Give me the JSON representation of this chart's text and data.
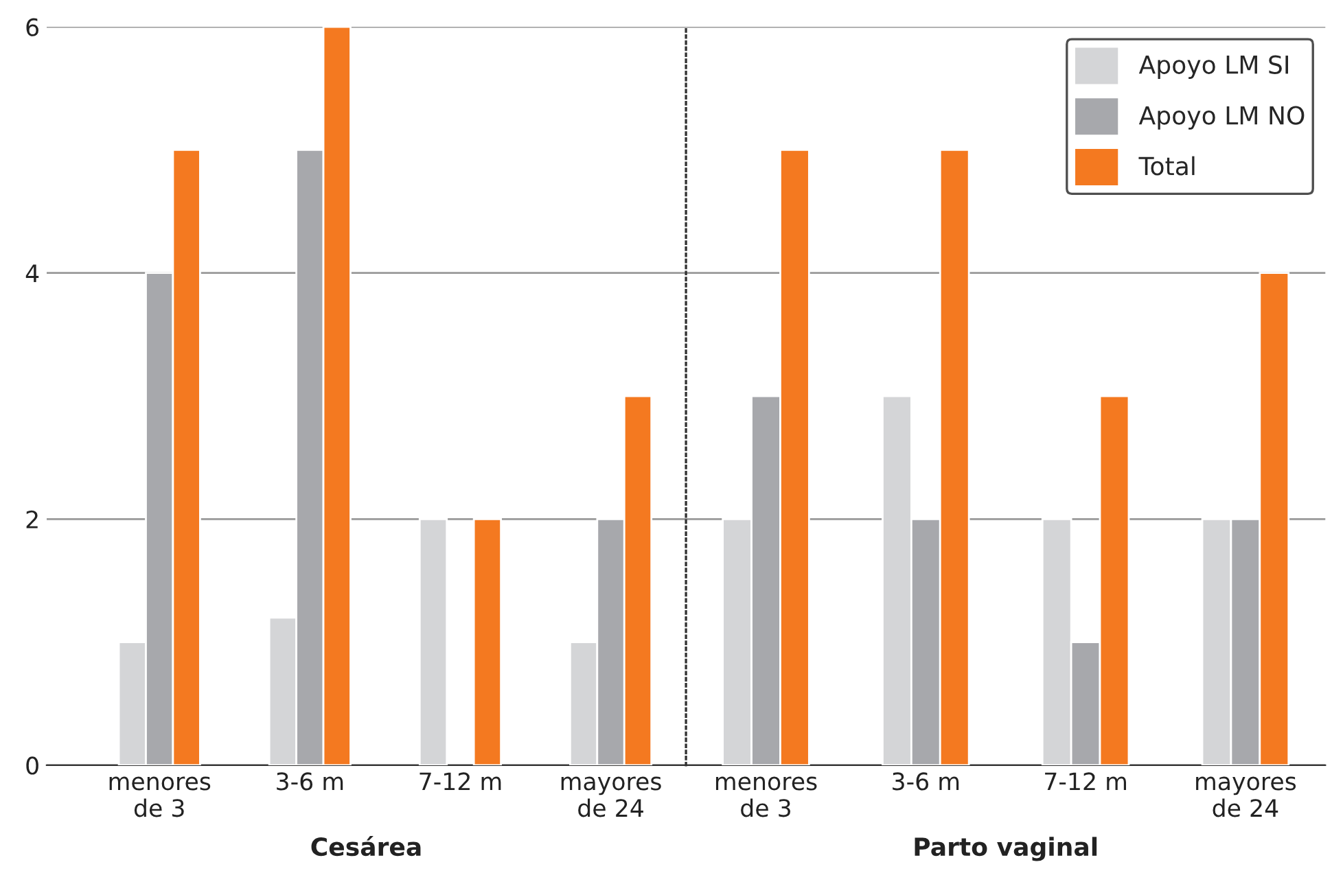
{
  "chart_data": [
    {
      "type": "bar",
      "xlabel": "Cesárea",
      "categories": [
        "menores\nde 3",
        "3-6 m",
        "7-12 m",
        "mayores\nde 24"
      ],
      "series": [
        {
          "color": "#d4d5d7",
          "values": [
            1,
            1.2,
            2,
            1
          ]
        },
        {
          "color": "#a7a8ac",
          "values": [
            4,
            5,
            null,
            2
          ]
        },
        {
          "color": "#f47920",
          "values": [
            5,
            6,
            2,
            3
          ]
        }
      ],
      "ylim": [
        0,
        6
      ],
      "yticks": [
        0,
        2,
        4,
        6
      ],
      "grid": "y"
    },
    {
      "type": "bar",
      "xlabel": "Parto vaginal",
      "categories": [
        "menores\nde 3",
        "3-6 m",
        "7-12 m",
        "mayores\nde 24"
      ],
      "series": [
        {
          "name": "Apoyo LM SI",
          "color": "#d4d5d7",
          "values": [
            2,
            3,
            2,
            2
          ]
        },
        {
          "name": "Apoyo LM NO",
          "color": "#a7a8ac",
          "values": [
            3,
            2,
            1,
            2
          ]
        },
        {
          "name": "Total",
          "color": "#f47920",
          "values": [
            5,
            5,
            3,
            4
          ]
        }
      ],
      "ylim": [
        0,
        6
      ],
      "yticks": [
        0,
        2,
        4,
        6
      ],
      "grid": "y",
      "legend": "top right",
      "tick_labels": "x"
    }
  ]
}
